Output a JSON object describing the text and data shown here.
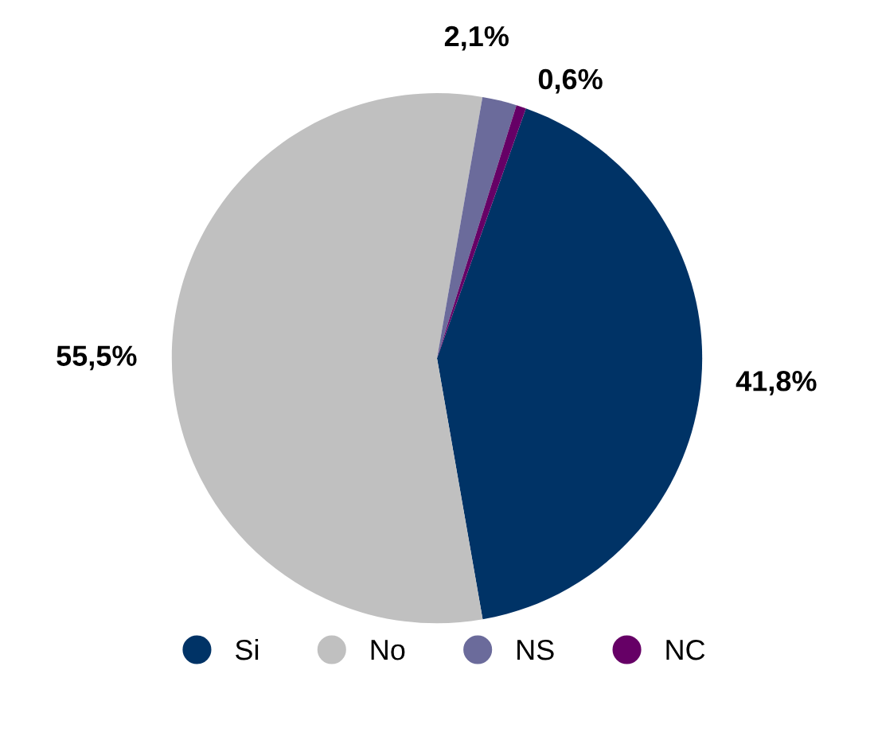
{
  "chart_data": {
    "type": "pie",
    "categories": [
      "Si",
      "No",
      "NS",
      "NC"
    ],
    "values": [
      41.8,
      55.5,
      2.1,
      0.6
    ],
    "value_labels": [
      "41,8%",
      "55,5%",
      "2,1%",
      "0,6%"
    ],
    "colors": [
      "#003366",
      "#c0c0c0",
      "#6b6b9b",
      "#660066"
    ],
    "legend": "bottom"
  }
}
